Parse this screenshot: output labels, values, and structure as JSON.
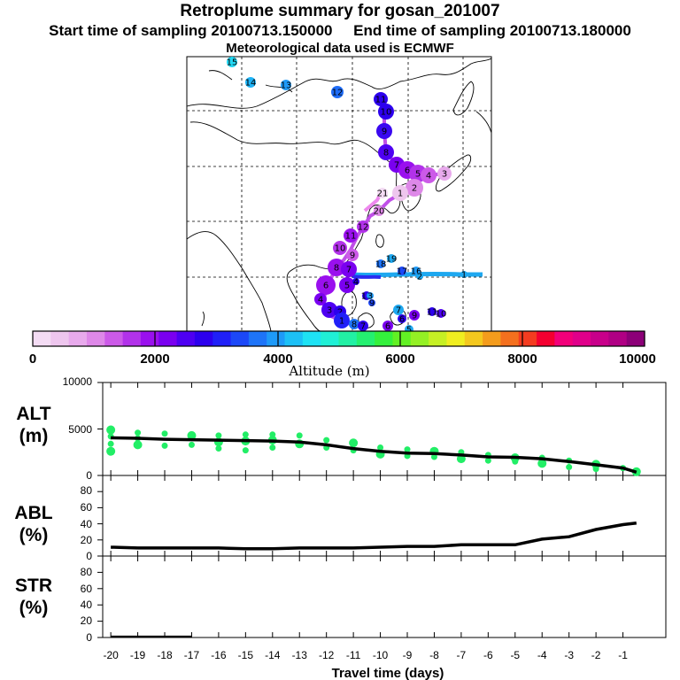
{
  "header": {
    "title": "Retroplume summary for gosan_201007",
    "sampling_line": "Start time of sampling 20100713.150000     End time of sampling 20100713.180000",
    "met_line": "Meteorological data used is ECMWF"
  },
  "colorbar": {
    "ticks": [
      "0",
      "2000",
      "4000",
      "6000",
      "8000",
      "10000"
    ],
    "label": "Altitude (m)",
    "colors": [
      "#f4dcf4",
      "#eec6ee",
      "#e8aaec",
      "#de88e8",
      "#cc5ae8",
      "#b232ea",
      "#9a10ee",
      "#7a00f0",
      "#4e00f2",
      "#2c00ee",
      "#2020f8",
      "#1c48f8",
      "#1e74f8",
      "#1e9af8",
      "#1cc0f6",
      "#1ee2f4",
      "#20f0d6",
      "#22f0a4",
      "#24f070",
      "#34f03c",
      "#62f024",
      "#94f024",
      "#c6f024",
      "#f0ee20",
      "#f4c81e",
      "#f49c1c",
      "#f4701e",
      "#f43c20",
      "#f40030",
      "#f2007a",
      "#e0008a",
      "#c8008a",
      "#b00084",
      "#8c0078"
    ]
  },
  "panels": {
    "alt": {
      "label_line1": "ALT",
      "label_line2": "(m)",
      "yticks": [
        "0",
        "5000",
        "10000"
      ]
    },
    "abl": {
      "label_line1": "ABL",
      "label_line2": "(%)",
      "yticks": [
        "0",
        "20",
        "40",
        "60",
        "80"
      ]
    },
    "str": {
      "label_line1": "STR",
      "label_line2": "(%)",
      "yticks": [
        "0",
        "20",
        "40",
        "60",
        "80"
      ]
    }
  },
  "x_axis": {
    "label": "Travel time (days)",
    "ticks": [
      "-20",
      "-19",
      "-18",
      "-17",
      "-16",
      "-15",
      "-14",
      "-13",
      "-12",
      "-11",
      "-10",
      "-9",
      "-8",
      "-7",
      "-6",
      "-5",
      "-4",
      "-3",
      "-2",
      "-1"
    ]
  },
  "map": {
    "labels": [
      "15",
      "14",
      "13",
      "12",
      "11",
      "10",
      "9",
      "8",
      "7",
      "6",
      "5",
      "4",
      "3",
      "2",
      "1",
      "21",
      "20",
      "19",
      "18",
      "17",
      "16",
      "12",
      "11",
      "10",
      "9",
      "8",
      "7",
      "6",
      "5",
      "4",
      "3",
      "2",
      "1",
      "7",
      "6",
      "9",
      "10",
      "11",
      "10",
      "9",
      "8",
      "7",
      "6",
      "5",
      "4",
      "3",
      "2",
      "1"
    ]
  },
  "chart_data": [
    {
      "type": "line",
      "title": "ALT",
      "ylabel": "ALT (m)",
      "xlabel": "Travel time (days)",
      "ylim": [
        0,
        10000
      ],
      "xlim": [
        -20,
        0
      ],
      "x": [
        -20,
        -19,
        -18,
        -17,
        -16,
        -15,
        -14,
        -13,
        -12,
        -11,
        -10,
        -9,
        -8,
        -7,
        -6,
        -5,
        -4,
        -3,
        -2,
        -1,
        -0.5
      ],
      "series": [
        {
          "name": "mean altitude",
          "values": [
            4050,
            4000,
            3900,
            3850,
            3800,
            3750,
            3700,
            3600,
            3300,
            2900,
            2600,
            2400,
            2350,
            2200,
            2000,
            1950,
            1800,
            1500,
            1150,
            800,
            350
          ]
        }
      ],
      "scatter": {
        "x": [
          -20,
          -20,
          -20,
          -20,
          -19,
          -19,
          -19,
          -18,
          -18,
          -17,
          -17,
          -16,
          -16,
          -16,
          -15,
          -15,
          -15,
          -14,
          -14,
          -14,
          -13,
          -13,
          -12,
          -12,
          -11,
          -11,
          -10,
          -10,
          -9,
          -9,
          -8,
          -8,
          -7,
          -7,
          -6,
          -6,
          -5,
          -5,
          -4,
          -4,
          -3,
          -3,
          -2,
          -2,
          -1,
          -0.5
        ],
        "y": [
          4900,
          4200,
          3400,
          2600,
          4600,
          4000,
          3300,
          4500,
          3200,
          4300,
          3300,
          4300,
          3600,
          2900,
          4400,
          3700,
          2700,
          4400,
          3800,
          3000,
          4300,
          3400,
          3800,
          3000,
          3500,
          2700,
          3000,
          2300,
          2800,
          2100,
          2600,
          2000,
          2500,
          1800,
          2200,
          1600,
          1900,
          1500,
          1900,
          1300,
          1600,
          900,
          1200,
          700,
          800,
          400
        ]
      }
    },
    {
      "type": "line",
      "title": "ABL",
      "ylabel": "ABL (%)",
      "xlabel": "Travel time (days)",
      "ylim": [
        0,
        100
      ],
      "xlim": [
        -20,
        0
      ],
      "x": [
        -20,
        -19,
        -18,
        -17,
        -16,
        -15,
        -14,
        -13,
        -12,
        -11,
        -10,
        -9,
        -8,
        -7,
        -6,
        -5,
        -4,
        -3,
        -2,
        -1,
        -0.5
      ],
      "series": [
        {
          "name": "ABL fraction",
          "values": [
            11,
            10,
            10,
            10,
            10,
            9,
            9,
            10,
            10,
            10,
            11,
            12,
            12,
            14,
            14,
            14,
            21,
            24,
            33,
            39,
            41
          ]
        }
      ]
    },
    {
      "type": "line",
      "title": "STR",
      "ylabel": "STR (%)",
      "xlabel": "Travel time (days)",
      "ylim": [
        0,
        100
      ],
      "xlim": [
        -20,
        0
      ],
      "x": [
        -20,
        -19,
        -18,
        -17
      ],
      "series": [
        {
          "name": "STR fraction",
          "values": [
            1,
            1,
            1,
            1
          ]
        }
      ]
    }
  ]
}
